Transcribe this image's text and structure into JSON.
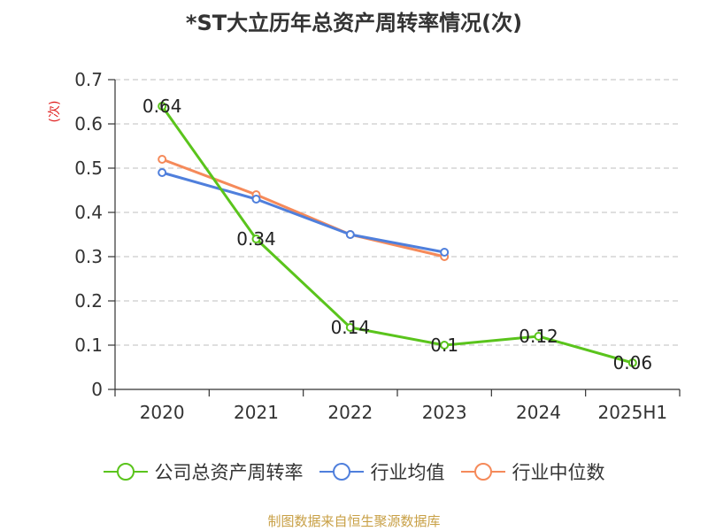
{
  "chart_data": {
    "type": "line",
    "title": "*ST大立历年总资产周转率情况(次)",
    "ylabel": "(次)",
    "xlabel": "",
    "categories": [
      "2020",
      "2021",
      "2022",
      "2023",
      "2024",
      "2025H1"
    ],
    "ylim": [
      0,
      0.7
    ],
    "yticks": [
      0,
      0.1,
      0.2,
      0.3,
      0.4,
      0.5,
      0.6,
      0.7
    ],
    "grid": true,
    "legend_position": "bottom",
    "series": [
      {
        "name": "公司总资产周转率",
        "color": "#5ac41c",
        "values": [
          0.64,
          0.34,
          0.14,
          0.1,
          0.12,
          0.06
        ],
        "data_labels": [
          "0.64",
          "0.34",
          "0.14",
          "0.1",
          "0.12",
          "0.06"
        ]
      },
      {
        "name": "行业均值",
        "color": "#4f7fdc",
        "values": [
          0.49,
          0.43,
          0.35,
          0.31,
          null,
          null
        ]
      },
      {
        "name": "行业中位数",
        "color": "#f58a5a",
        "values": [
          0.52,
          0.44,
          0.35,
          0.3,
          null,
          null
        ]
      }
    ]
  },
  "source_text": "制图数据来自恒生聚源数据库"
}
